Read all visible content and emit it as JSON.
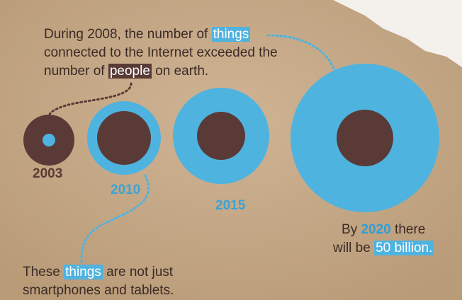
{
  "top_note": {
    "line1_before": "During 2008, the number of",
    "highlight_things": "things",
    "line2": "connected to the Internet exceeded the",
    "line3_before": "number of",
    "highlight_people": "people",
    "line3_after": "on earth."
  },
  "circles": [
    {
      "year": "2003"
    },
    {
      "year": "2010"
    },
    {
      "year": "2015"
    }
  ],
  "end_note": {
    "prefix": "By",
    "year": "2020",
    "line1_after": "there",
    "line2_before": "will be",
    "highlight": "50 billion."
  },
  "bottom_note": {
    "before": "These",
    "highlight": "things",
    "after": "are not just",
    "line2": "smartphones and tablets."
  }
}
